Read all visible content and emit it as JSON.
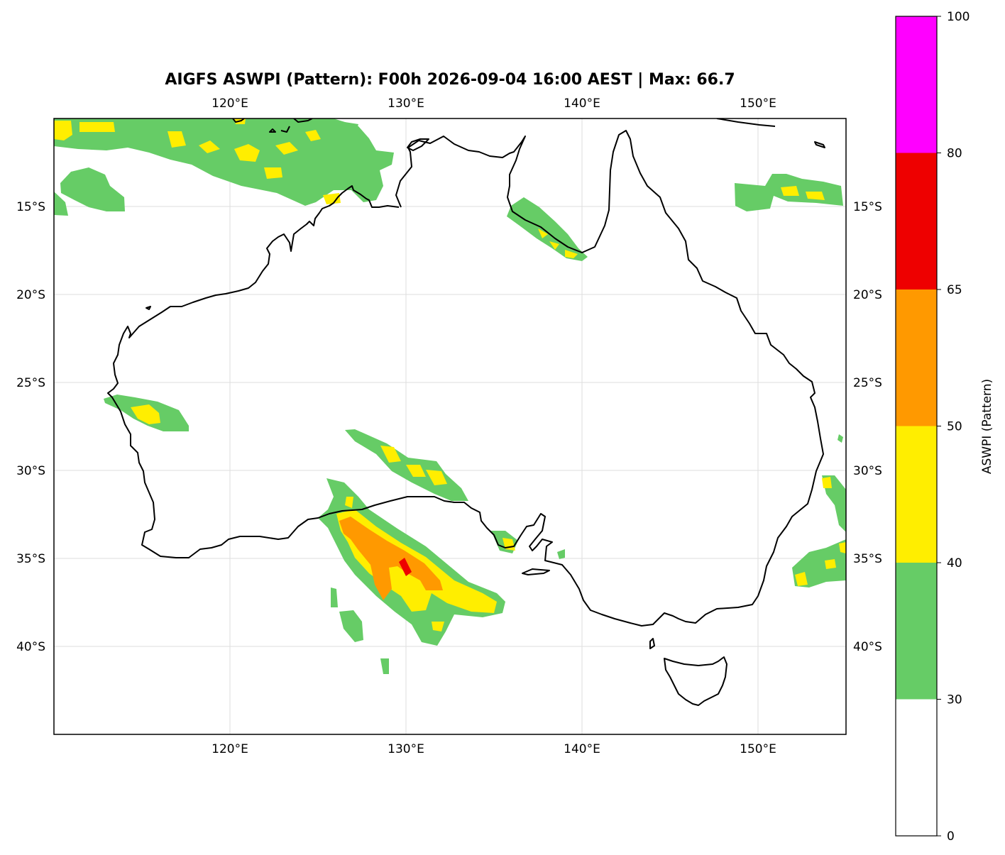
{
  "title": "AIGFS ASWPI (Pattern): F00h 2026-09-04 16:00 AEST | Max: 66.7",
  "map": {
    "lon_range": [
      110,
      155
    ],
    "lat_range": [
      -45,
      -10
    ],
    "lon_ticks": [
      {
        "value": 120,
        "label": "120°E"
      },
      {
        "value": 130,
        "label": "130°E"
      },
      {
        "value": 140,
        "label": "140°E"
      },
      {
        "value": 150,
        "label": "150°E"
      }
    ],
    "lat_ticks": [
      {
        "value": -15,
        "label": "15°S"
      },
      {
        "value": -20,
        "label": "20°S"
      },
      {
        "value": -25,
        "label": "25°S"
      },
      {
        "value": -30,
        "label": "30°S"
      },
      {
        "value": -35,
        "label": "35°S"
      },
      {
        "value": -40,
        "label": "40°S"
      }
    ],
    "gridlines": true
  },
  "colorbar": {
    "label": "ASWPI (Pattern)",
    "ticks": [
      {
        "value": 0,
        "label": "0"
      },
      {
        "value": 30,
        "label": "30"
      },
      {
        "value": 40,
        "label": "40"
      },
      {
        "value": 50,
        "label": "50"
      },
      {
        "value": 65,
        "label": "65"
      },
      {
        "value": 80,
        "label": "80"
      },
      {
        "value": 100,
        "label": "100"
      }
    ],
    "levels": [
      {
        "from": 0,
        "to": 30,
        "color": "#ffffff"
      },
      {
        "from": 30,
        "to": 40,
        "color": "#66cc66"
      },
      {
        "from": 40,
        "to": 50,
        "color": "#ffee00"
      },
      {
        "from": 50,
        "to": 65,
        "color": "#ff9900"
      },
      {
        "from": 65,
        "to": 80,
        "color": "#ee0000"
      },
      {
        "from": 80,
        "to": 100,
        "color": "#ff00ff"
      }
    ]
  }
}
